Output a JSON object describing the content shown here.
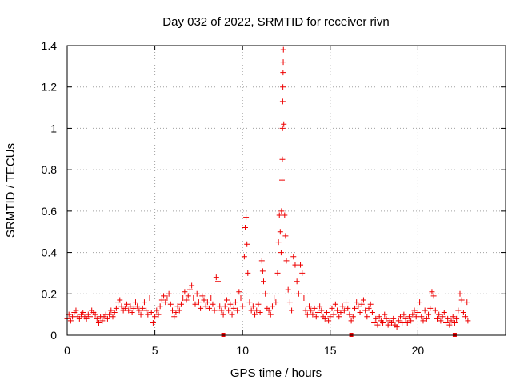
{
  "chart_data": {
    "type": "scatter",
    "title": "Day 032 of 2022, SRMTID for receiver rivn",
    "xlabel": "GPS time / hours",
    "ylabel": "SRMTID / TECUs",
    "xlim": [
      0,
      25
    ],
    "ylim": [
      0,
      1.4
    ],
    "grid": true,
    "marker": "+",
    "series_color": "#ee0000",
    "x_ticks": [
      0,
      5,
      10,
      15,
      20
    ],
    "x_tick_labels": [
      "0",
      "5",
      "10",
      "15",
      "20"
    ],
    "y_ticks": [
      0,
      0.2,
      0.4,
      0.6,
      0.8,
      1.0,
      1.2,
      1.4
    ],
    "y_tick_labels": [
      "0",
      "0.2",
      "0.4",
      "0.6",
      "0.8",
      "1",
      "1.2",
      "1.4"
    ],
    "gap_markers_x": [
      8.9,
      16.2,
      22.1
    ],
    "series": [
      {
        "name": "SRMTID",
        "points": [
          [
            0.0,
            0.08
          ],
          [
            0.1,
            0.1
          ],
          [
            0.2,
            0.07
          ],
          [
            0.3,
            0.09
          ],
          [
            0.4,
            0.11
          ],
          [
            0.5,
            0.12
          ],
          [
            0.6,
            0.09
          ],
          [
            0.7,
            0.08
          ],
          [
            0.8,
            0.1
          ],
          [
            0.9,
            0.11
          ],
          [
            1.0,
            0.09
          ],
          [
            1.1,
            0.08
          ],
          [
            1.2,
            0.1
          ],
          [
            1.3,
            0.09
          ],
          [
            1.4,
            0.12
          ],
          [
            1.5,
            0.11
          ],
          [
            1.6,
            0.1
          ],
          [
            1.7,
            0.08
          ],
          [
            1.8,
            0.06
          ],
          [
            1.9,
            0.09
          ],
          [
            2.0,
            0.07
          ],
          [
            2.1,
            0.09
          ],
          [
            2.2,
            0.1
          ],
          [
            2.3,
            0.08
          ],
          [
            2.4,
            0.1
          ],
          [
            2.5,
            0.12
          ],
          [
            2.6,
            0.09
          ],
          [
            2.7,
            0.11
          ],
          [
            2.8,
            0.13
          ],
          [
            2.9,
            0.16
          ],
          [
            3.0,
            0.17
          ],
          [
            3.1,
            0.14
          ],
          [
            3.2,
            0.12
          ],
          [
            3.3,
            0.13
          ],
          [
            3.4,
            0.15
          ],
          [
            3.5,
            0.12
          ],
          [
            3.6,
            0.14
          ],
          [
            3.7,
            0.11
          ],
          [
            3.8,
            0.13
          ],
          [
            3.9,
            0.16
          ],
          [
            4.0,
            0.14
          ],
          [
            4.1,
            0.12
          ],
          [
            4.2,
            0.1
          ],
          [
            4.3,
            0.13
          ],
          [
            4.4,
            0.16
          ],
          [
            4.5,
            0.12
          ],
          [
            4.6,
            0.1
          ],
          [
            4.7,
            0.18
          ],
          [
            4.8,
            0.11
          ],
          [
            4.9,
            0.06
          ],
          [
            5.0,
            0.09
          ],
          [
            5.1,
            0.12
          ],
          [
            5.2,
            0.1
          ],
          [
            5.3,
            0.14
          ],
          [
            5.4,
            0.17
          ],
          [
            5.5,
            0.19
          ],
          [
            5.6,
            0.16
          ],
          [
            5.7,
            0.18
          ],
          [
            5.8,
            0.2
          ],
          [
            5.9,
            0.15
          ],
          [
            6.0,
            0.12
          ],
          [
            6.1,
            0.09
          ],
          [
            6.2,
            0.11
          ],
          [
            6.3,
            0.14
          ],
          [
            6.4,
            0.12
          ],
          [
            6.5,
            0.15
          ],
          [
            6.6,
            0.18
          ],
          [
            6.7,
            0.21
          ],
          [
            6.8,
            0.17
          ],
          [
            6.9,
            0.19
          ],
          [
            7.0,
            0.22
          ],
          [
            7.1,
            0.24
          ],
          [
            7.2,
            0.18
          ],
          [
            7.3,
            0.15
          ],
          [
            7.4,
            0.2
          ],
          [
            7.5,
            0.16
          ],
          [
            7.6,
            0.13
          ],
          [
            7.7,
            0.19
          ],
          [
            7.8,
            0.17
          ],
          [
            7.9,
            0.14
          ],
          [
            8.0,
            0.16
          ],
          [
            8.1,
            0.13
          ],
          [
            8.2,
            0.18
          ],
          [
            8.3,
            0.15
          ],
          [
            8.4,
            0.12
          ],
          [
            8.5,
            0.28
          ],
          [
            8.6,
            0.26
          ],
          [
            8.7,
            0.14
          ],
          [
            8.8,
            0.12
          ],
          [
            8.9,
            0.1
          ],
          [
            9.0,
            0.14
          ],
          [
            9.1,
            0.17
          ],
          [
            9.2,
            0.12
          ],
          [
            9.3,
            0.15
          ],
          [
            9.4,
            0.1
          ],
          [
            9.5,
            0.13
          ],
          [
            9.6,
            0.16
          ],
          [
            9.7,
            0.12
          ],
          [
            9.8,
            0.21
          ],
          [
            9.9,
            0.18
          ],
          [
            10.0,
            0.14
          ],
          [
            10.1,
            0.38
          ],
          [
            10.15,
            0.52
          ],
          [
            10.2,
            0.57
          ],
          [
            10.25,
            0.44
          ],
          [
            10.3,
            0.3
          ],
          [
            10.4,
            0.16
          ],
          [
            10.5,
            0.12
          ],
          [
            10.6,
            0.14
          ],
          [
            10.7,
            0.1
          ],
          [
            10.8,
            0.12
          ],
          [
            10.9,
            0.15
          ],
          [
            11.0,
            0.11
          ],
          [
            11.1,
            0.36
          ],
          [
            11.15,
            0.31
          ],
          [
            11.2,
            0.26
          ],
          [
            11.3,
            0.2
          ],
          [
            11.4,
            0.13
          ],
          [
            11.5,
            0.12
          ],
          [
            11.6,
            0.1
          ],
          [
            11.7,
            0.14
          ],
          [
            11.8,
            0.18
          ],
          [
            11.9,
            0.16
          ],
          [
            12.0,
            0.3
          ],
          [
            12.05,
            0.45
          ],
          [
            12.1,
            0.58
          ],
          [
            12.15,
            0.5
          ],
          [
            12.2,
            0.4
          ],
          [
            12.22,
            0.6
          ],
          [
            12.25,
            0.75
          ],
          [
            12.27,
            0.85
          ],
          [
            12.28,
            1.0
          ],
          [
            12.29,
            1.13
          ],
          [
            12.3,
            1.2
          ],
          [
            12.31,
            1.27
          ],
          [
            12.32,
            1.32
          ],
          [
            12.33,
            1.38
          ],
          [
            12.35,
            1.02
          ],
          [
            12.4,
            0.58
          ],
          [
            12.45,
            0.48
          ],
          [
            12.5,
            0.36
          ],
          [
            12.6,
            0.22
          ],
          [
            12.7,
            0.16
          ],
          [
            12.8,
            0.12
          ],
          [
            12.9,
            0.38
          ],
          [
            13.0,
            0.34
          ],
          [
            13.1,
            0.26
          ],
          [
            13.2,
            0.2
          ],
          [
            13.3,
            0.34
          ],
          [
            13.4,
            0.3
          ],
          [
            13.5,
            0.18
          ],
          [
            13.6,
            0.12
          ],
          [
            13.7,
            0.1
          ],
          [
            13.8,
            0.14
          ],
          [
            13.9,
            0.12
          ],
          [
            14.0,
            0.1
          ],
          [
            14.1,
            0.13
          ],
          [
            14.2,
            0.09
          ],
          [
            14.3,
            0.11
          ],
          [
            14.4,
            0.14
          ],
          [
            14.5,
            0.12
          ],
          [
            14.6,
            0.09
          ],
          [
            14.7,
            0.08
          ],
          [
            14.8,
            0.11
          ],
          [
            14.9,
            0.07
          ],
          [
            15.0,
            0.09
          ],
          [
            15.1,
            0.13
          ],
          [
            15.2,
            0.1
          ],
          [
            15.3,
            0.15
          ],
          [
            15.4,
            0.12
          ],
          [
            15.5,
            0.09
          ],
          [
            15.6,
            0.11
          ],
          [
            15.7,
            0.14
          ],
          [
            15.8,
            0.12
          ],
          [
            15.9,
            0.16
          ],
          [
            16.0,
            0.13
          ],
          [
            16.1,
            0.1
          ],
          [
            16.2,
            0.07
          ],
          [
            16.3,
            0.09
          ],
          [
            16.4,
            0.13
          ],
          [
            16.5,
            0.16
          ],
          [
            16.6,
            0.14
          ],
          [
            16.7,
            0.11
          ],
          [
            16.8,
            0.15
          ],
          [
            16.9,
            0.17
          ],
          [
            17.0,
            0.12
          ],
          [
            17.1,
            0.09
          ],
          [
            17.2,
            0.13
          ],
          [
            17.3,
            0.15
          ],
          [
            17.4,
            0.11
          ],
          [
            17.5,
            0.06
          ],
          [
            17.6,
            0.08
          ],
          [
            17.7,
            0.05
          ],
          [
            17.8,
            0.09
          ],
          [
            17.9,
            0.07
          ],
          [
            18.0,
            0.06
          ],
          [
            18.1,
            0.1
          ],
          [
            18.2,
            0.08
          ],
          [
            18.3,
            0.05
          ],
          [
            18.4,
            0.07
          ],
          [
            18.5,
            0.06
          ],
          [
            18.6,
            0.08
          ],
          [
            18.7,
            0.05
          ],
          [
            18.8,
            0.04
          ],
          [
            18.9,
            0.07
          ],
          [
            19.0,
            0.09
          ],
          [
            19.1,
            0.06
          ],
          [
            19.2,
            0.1
          ],
          [
            19.3,
            0.08
          ],
          [
            19.4,
            0.06
          ],
          [
            19.5,
            0.09
          ],
          [
            19.6,
            0.07
          ],
          [
            19.7,
            0.1
          ],
          [
            19.8,
            0.12
          ],
          [
            19.9,
            0.09
          ],
          [
            20.0,
            0.11
          ],
          [
            20.1,
            0.16
          ],
          [
            20.2,
            0.09
          ],
          [
            20.3,
            0.07
          ],
          [
            20.4,
            0.12
          ],
          [
            20.5,
            0.08
          ],
          [
            20.6,
            0.1
          ],
          [
            20.7,
            0.13
          ],
          [
            20.8,
            0.21
          ],
          [
            20.9,
            0.19
          ],
          [
            21.0,
            0.12
          ],
          [
            21.1,
            0.08
          ],
          [
            21.2,
            0.1
          ],
          [
            21.3,
            0.07
          ],
          [
            21.4,
            0.09
          ],
          [
            21.5,
            0.11
          ],
          [
            21.6,
            0.06
          ],
          [
            21.7,
            0.08
          ],
          [
            21.8,
            0.05
          ],
          [
            21.9,
            0.07
          ],
          [
            22.0,
            0.09
          ],
          [
            22.1,
            0.06
          ],
          [
            22.2,
            0.08
          ],
          [
            22.3,
            0.12
          ],
          [
            22.4,
            0.2
          ],
          [
            22.5,
            0.17
          ],
          [
            22.6,
            0.11
          ],
          [
            22.7,
            0.09
          ],
          [
            22.8,
            0.16
          ],
          [
            22.85,
            0.07
          ]
        ]
      }
    ]
  }
}
